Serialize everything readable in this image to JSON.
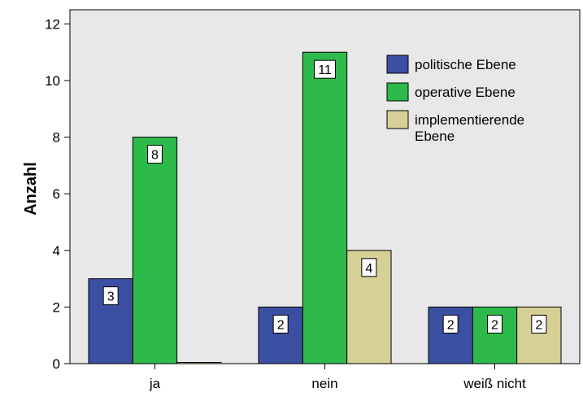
{
  "chart_data": {
    "type": "bar",
    "title": "",
    "xlabel": "",
    "ylabel": "Anzahl",
    "categories": [
      "ja",
      "nein",
      "weiß nicht"
    ],
    "series": [
      {
        "name": "politische Ebene",
        "values": [
          3,
          2,
          2
        ],
        "color": "#3b4fa3"
      },
      {
        "name": "operative Ebene",
        "values": [
          8,
          11,
          2
        ],
        "color": "#2dba4a"
      },
      {
        "name": "implementierende Ebene",
        "values": [
          0,
          4,
          2
        ],
        "color": "#d6cf96"
      }
    ],
    "ylim": [
      0,
      12.5
    ],
    "yticks": [
      0,
      2,
      4,
      6,
      8,
      10,
      12
    ],
    "grid": false,
    "legend": "top-right",
    "plot_background": "#e8e8e8"
  }
}
